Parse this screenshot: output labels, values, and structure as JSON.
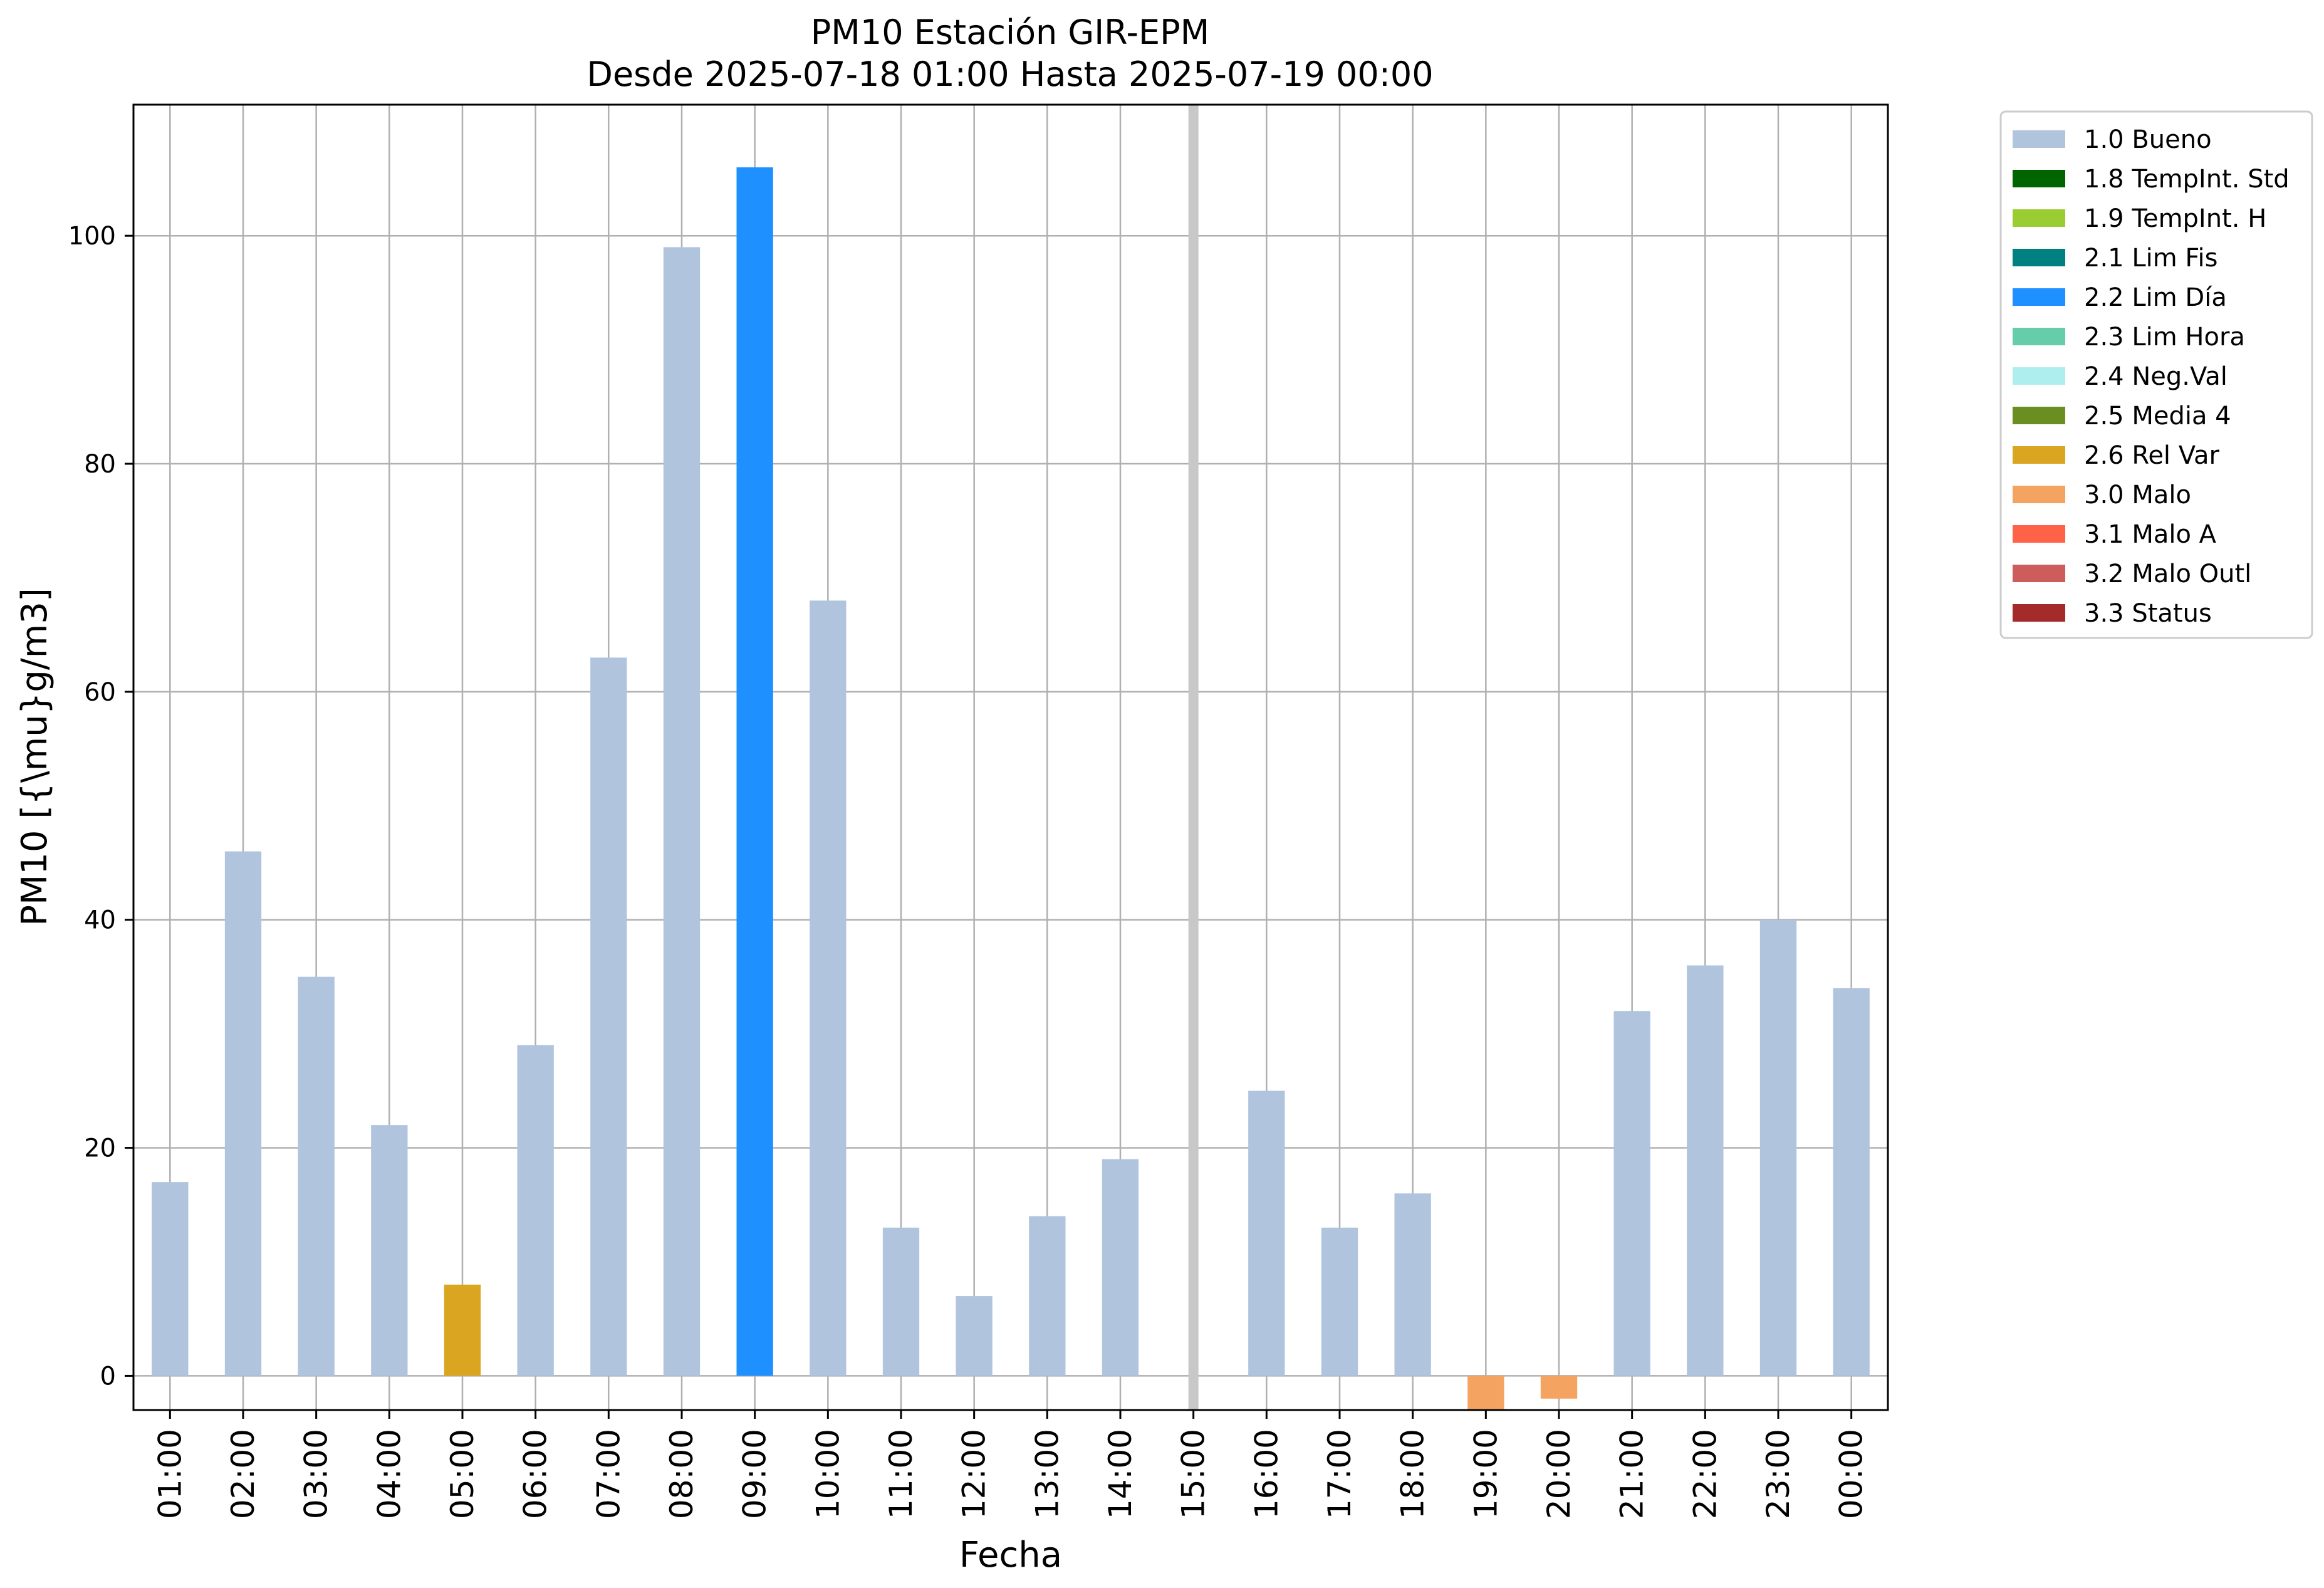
{
  "chart_data": {
    "type": "bar",
    "title": "PM10 Estación GIR-EPM",
    "subtitle": "Desde 2025-07-18 01:00 Hasta 2025-07-19 00:00",
    "xlabel": "Fecha",
    "ylabel": "PM10 [{\\mu}g/m3]",
    "ylim": [
      -3,
      111.5
    ],
    "yticks": [
      0,
      20,
      40,
      60,
      80,
      100
    ],
    "grid": true,
    "legend_position": "outside-top-right",
    "categories": [
      "01:00",
      "02:00",
      "03:00",
      "04:00",
      "05:00",
      "06:00",
      "07:00",
      "08:00",
      "09:00",
      "10:00",
      "11:00",
      "12:00",
      "13:00",
      "14:00",
      "15:00",
      "16:00",
      "17:00",
      "18:00",
      "19:00",
      "20:00",
      "21:00",
      "22:00",
      "23:00",
      "00:00"
    ],
    "values": [
      17,
      46,
      35,
      22,
      8,
      29,
      63,
      99,
      106,
      68,
      13,
      7,
      14,
      19,
      null,
      25,
      13,
      16,
      -3,
      -2,
      32,
      36,
      40,
      34
    ],
    "flags": [
      "1.0 Bueno",
      "1.0 Bueno",
      "1.0 Bueno",
      "1.0 Bueno",
      "2.6 Rel Var",
      "1.0 Bueno",
      "1.0 Bueno",
      "1.0 Bueno",
      "2.2 Lim Día",
      "1.0 Bueno",
      "1.0 Bueno",
      "1.0 Bueno",
      "1.0 Bueno",
      "1.0 Bueno",
      null,
      "1.0 Bueno",
      "1.0 Bueno",
      "1.0 Bueno",
      "3.0 Malo",
      "3.0 Malo",
      "1.0 Bueno",
      "1.0 Bueno",
      "1.0 Bueno",
      "1.0 Bueno"
    ],
    "missing_marker": "15:00",
    "missing_color": "#c8c8c8",
    "legend": [
      {
        "label": "1.0 Bueno",
        "color": "#b0c4de"
      },
      {
        "label": "1.8 TempInt. Std",
        "color": "#006400"
      },
      {
        "label": "1.9 TempInt. H",
        "color": "#9acd32"
      },
      {
        "label": "2.1 Lim Fis",
        "color": "#008080"
      },
      {
        "label": "2.2 Lim Día",
        "color": "#1e90ff"
      },
      {
        "label": "2.3 Lim Hora",
        "color": "#66cdaa"
      },
      {
        "label": "2.4 Neg.Val",
        "color": "#afeeee"
      },
      {
        "label": "2.5 Media 4",
        "color": "#6b8e23"
      },
      {
        "label": "2.6 Rel Var",
        "color": "#daa520"
      },
      {
        "label": "3.0 Malo",
        "color": "#f4a460"
      },
      {
        "label": "3.1 Malo A",
        "color": "#ff6347"
      },
      {
        "label": "3.2 Malo Outl",
        "color": "#cd5c5c"
      },
      {
        "label": "3.3 Status",
        "color": "#a52a2a"
      }
    ]
  }
}
